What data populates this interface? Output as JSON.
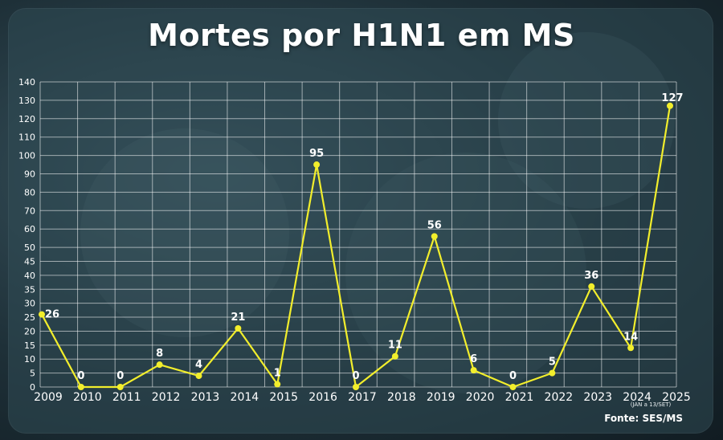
{
  "chart_data": {
    "type": "line",
    "title": "Mortes por H1N1 em MS",
    "x": [
      "2009",
      "2010",
      "2011",
      "2012",
      "2013",
      "2014",
      "2015",
      "2016",
      "2017",
      "2018",
      "2019",
      "2020",
      "2021",
      "2022",
      "2023",
      "2024",
      "2025"
    ],
    "series": [
      {
        "values": [
          26,
          0,
          0,
          8,
          4,
          21,
          1,
          95,
          0,
          11,
          56,
          6,
          0,
          5,
          36,
          14,
          127
        ]
      }
    ],
    "data_labels": [
      "26",
      "0",
      "0",
      "8",
      "4",
      "21",
      "1",
      "95",
      "0",
      "11",
      "56",
      "6",
      "0",
      "5",
      "36",
      "14",
      "127"
    ],
    "yticks": [
      0,
      5,
      10,
      15,
      20,
      25,
      30,
      35,
      40,
      45,
      50,
      60,
      70,
      80,
      90,
      100,
      110,
      120,
      130,
      140
    ],
    "ylim": [
      0,
      140
    ],
    "y_scale": "piecewise: 0-50 step 5, 50-140 step 10",
    "grid": true,
    "line_color": "#f2ee2c",
    "x_note": "(JAN a 13/SET)",
    "source": "Fonte: SES/MS"
  }
}
